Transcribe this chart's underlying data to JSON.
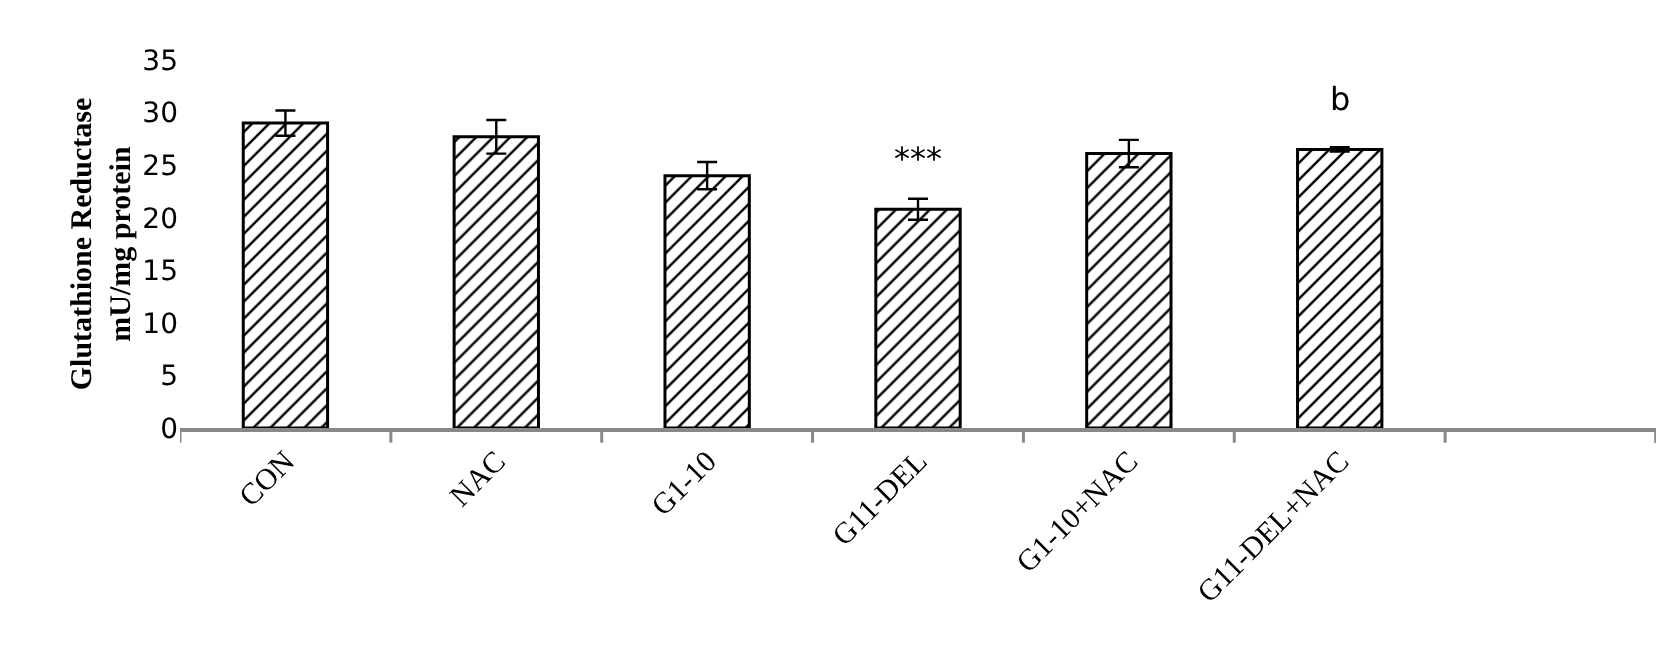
{
  "chart_data": {
    "type": "bar",
    "ylabel": "Glutathione Reductase\nmU/mg protein",
    "categories": [
      "CON",
      "NAC",
      "G1-10",
      "G11-DEL",
      "G1-10+NAC",
      "G11-DEL+NAC",
      null
    ],
    "values": [
      29,
      27.7,
      24,
      20.8,
      26.1,
      26.5,
      null
    ],
    "errors": [
      1.2,
      1.6,
      1.3,
      1.0,
      1.3,
      0.2,
      null
    ],
    "color": "#000000",
    "ylim": [
      0,
      35
    ],
    "yticks": [
      0,
      5,
      10,
      15,
      20,
      25,
      30,
      35
    ],
    "grid": false,
    "annotations": [
      {
        "text": "***",
        "x": "G11-DEL",
        "y": 20.8
      },
      {
        "text": "b",
        "x": "G11-DEL+NAC",
        "y": 26.5
      }
    ]
  }
}
